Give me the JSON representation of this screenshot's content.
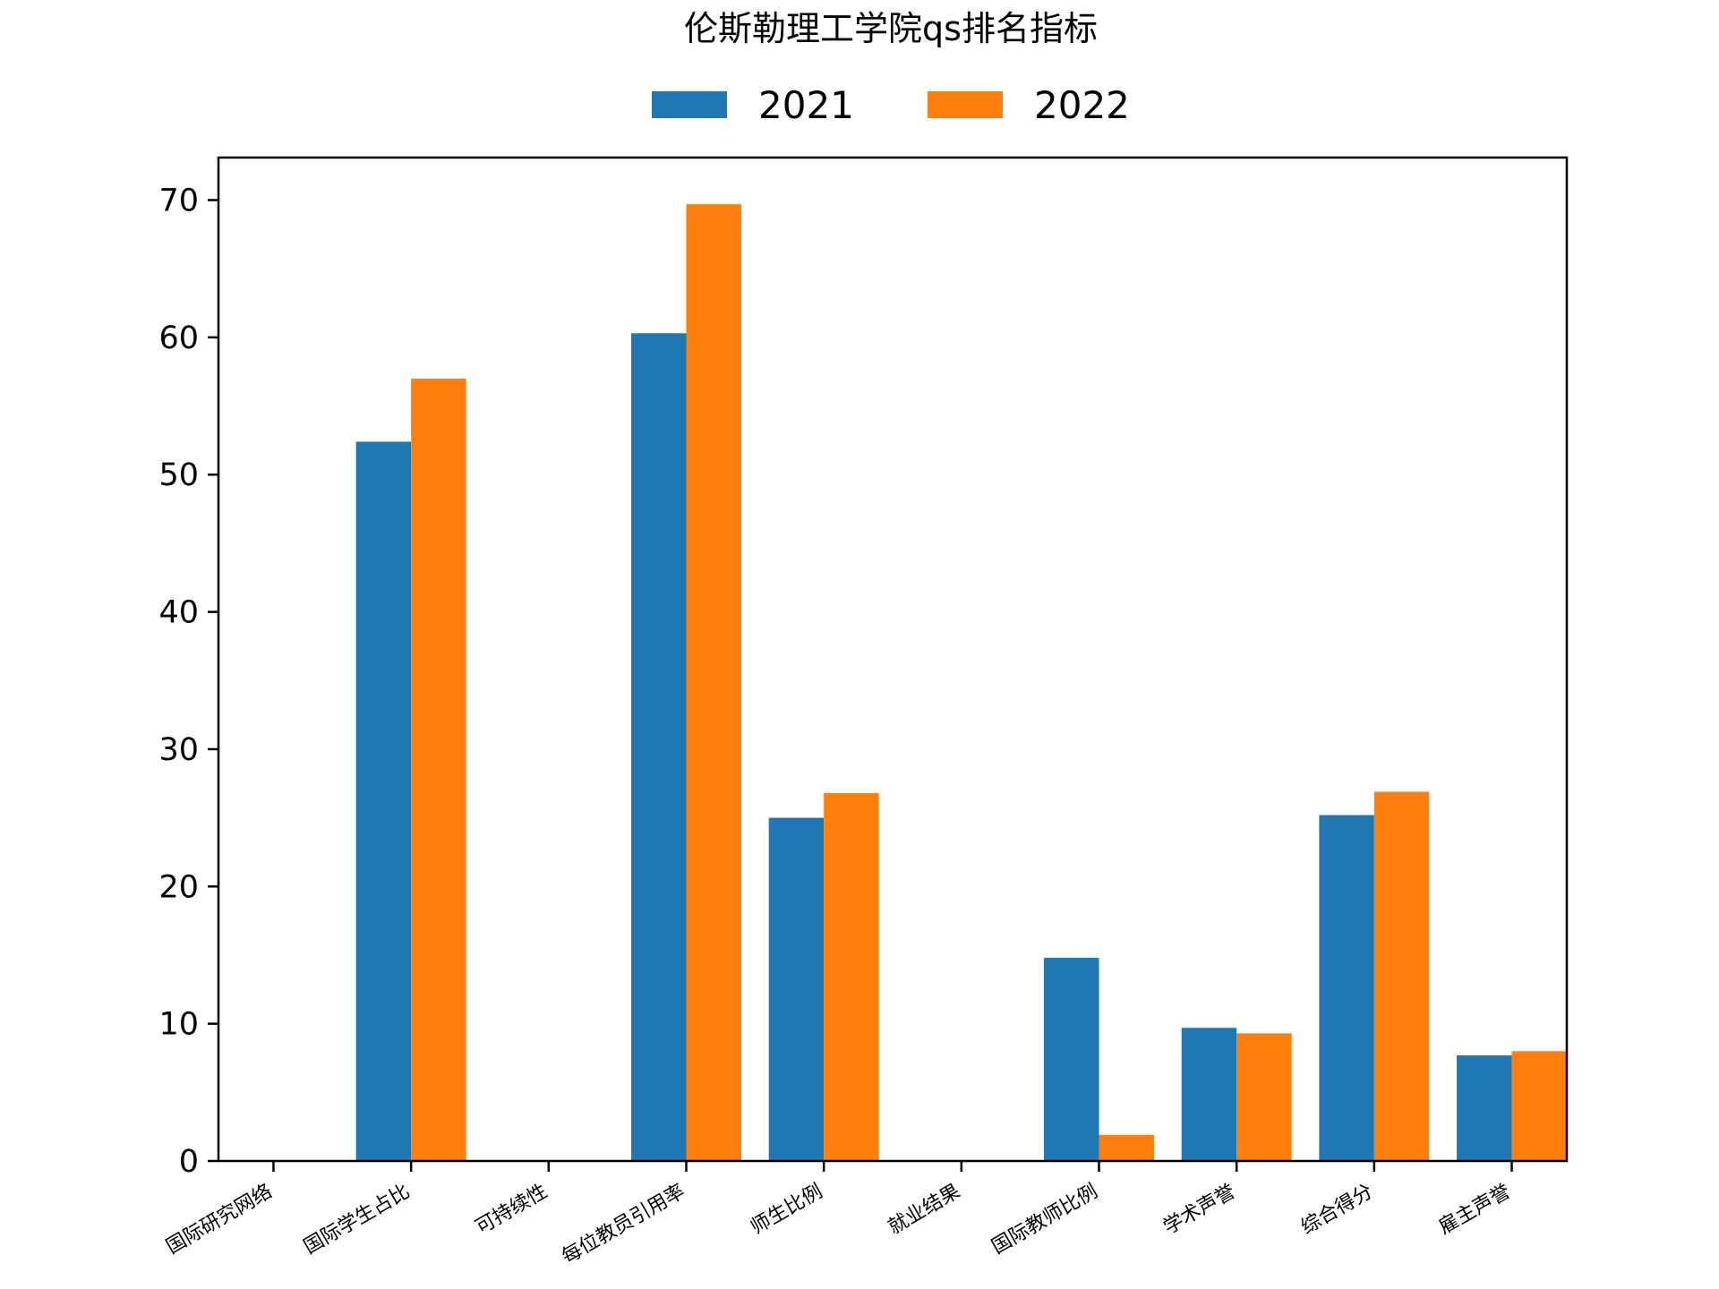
{
  "chart_data": {
    "type": "bar",
    "title": "伦斯勒理工学院qs排名指标",
    "xlabel": "",
    "ylabel": "",
    "categories": [
      "国际研究网络",
      "国际学生占比",
      "可持续性",
      "每位教员引用率",
      "师生比例",
      "就业结果",
      "国际教师比例",
      "学术声誉",
      "综合得分",
      "雇主声誉"
    ],
    "series": [
      {
        "name": "2021",
        "color": "#1f77b4",
        "values": [
          0,
          52.4,
          0,
          60.3,
          25.0,
          0,
          14.8,
          9.7,
          25.2,
          7.7
        ]
      },
      {
        "name": "2022",
        "color": "#ff7f0e",
        "values": [
          0,
          57.0,
          0,
          69.7,
          26.8,
          0,
          1.9,
          9.3,
          26.9,
          8.0
        ]
      }
    ],
    "ylim": [
      0,
      73.1
    ],
    "yticks": [
      0,
      10,
      20,
      30,
      40,
      50,
      60,
      70
    ],
    "legend_position": "top-center",
    "grid": false,
    "x_tick_rotation": -30
  }
}
